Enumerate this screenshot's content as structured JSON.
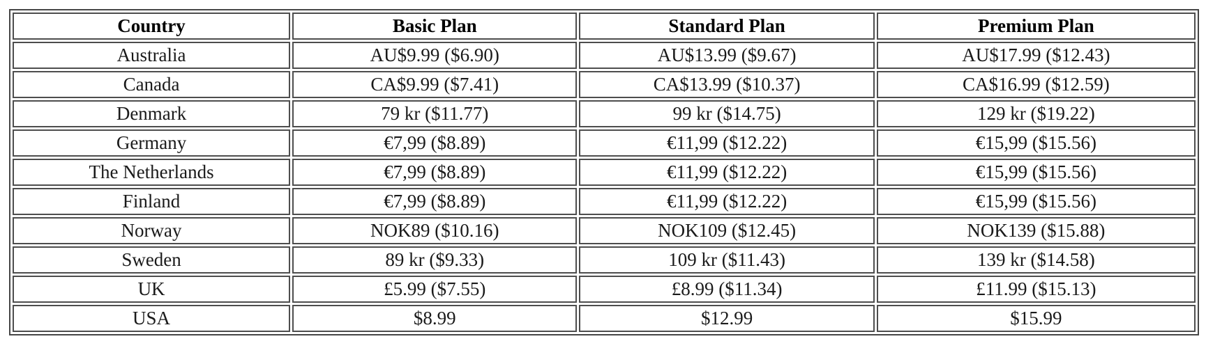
{
  "chart_data": {
    "type": "table",
    "columns": [
      "Country",
      "Basic Plan",
      "Standard Plan",
      "Premium Plan"
    ],
    "rows": [
      [
        "Australia",
        "AU$9.99 ($6.90)",
        "AU$13.99 ($9.67)",
        "AU$17.99 ($12.43)"
      ],
      [
        "Canada",
        "CA$9.99 ($7.41)",
        "CA$13.99 ($10.37)",
        "CA$16.99 ($12.59)"
      ],
      [
        "Denmark",
        "79 kr ($11.77)",
        "99 kr ($14.75)",
        "129 kr ($19.22)"
      ],
      [
        "Germany",
        "€7,99 ($8.89)",
        "€11,99 ($12.22)",
        "€15,99 ($15.56)"
      ],
      [
        "The Netherlands",
        "€7,99 ($8.89)",
        "€11,99 ($12.22)",
        "€15,99 ($15.56)"
      ],
      [
        "Finland",
        "€7,99 ($8.89)",
        "€11,99 ($12.22)",
        "€15,99 ($15.56)"
      ],
      [
        "Norway",
        "NOK89 ($10.16)",
        "NOK109 ($12.45)",
        "NOK139 ($15.88)"
      ],
      [
        "Sweden",
        "89 kr ($9.33)",
        "109 kr ($11.43)",
        "139 kr ($14.58)"
      ],
      [
        "UK",
        "£5.99 ($7.55)",
        "£8.99 ($11.34)",
        "£11.99 ($15.13)"
      ],
      [
        "USA",
        "$8.99",
        "$12.99",
        "$15.99"
      ]
    ],
    "layout": {
      "border_color": "#4d4d4d",
      "text_color": "#1a1a1a",
      "background_color": "#ffffff",
      "cell_alignment": "center"
    }
  }
}
